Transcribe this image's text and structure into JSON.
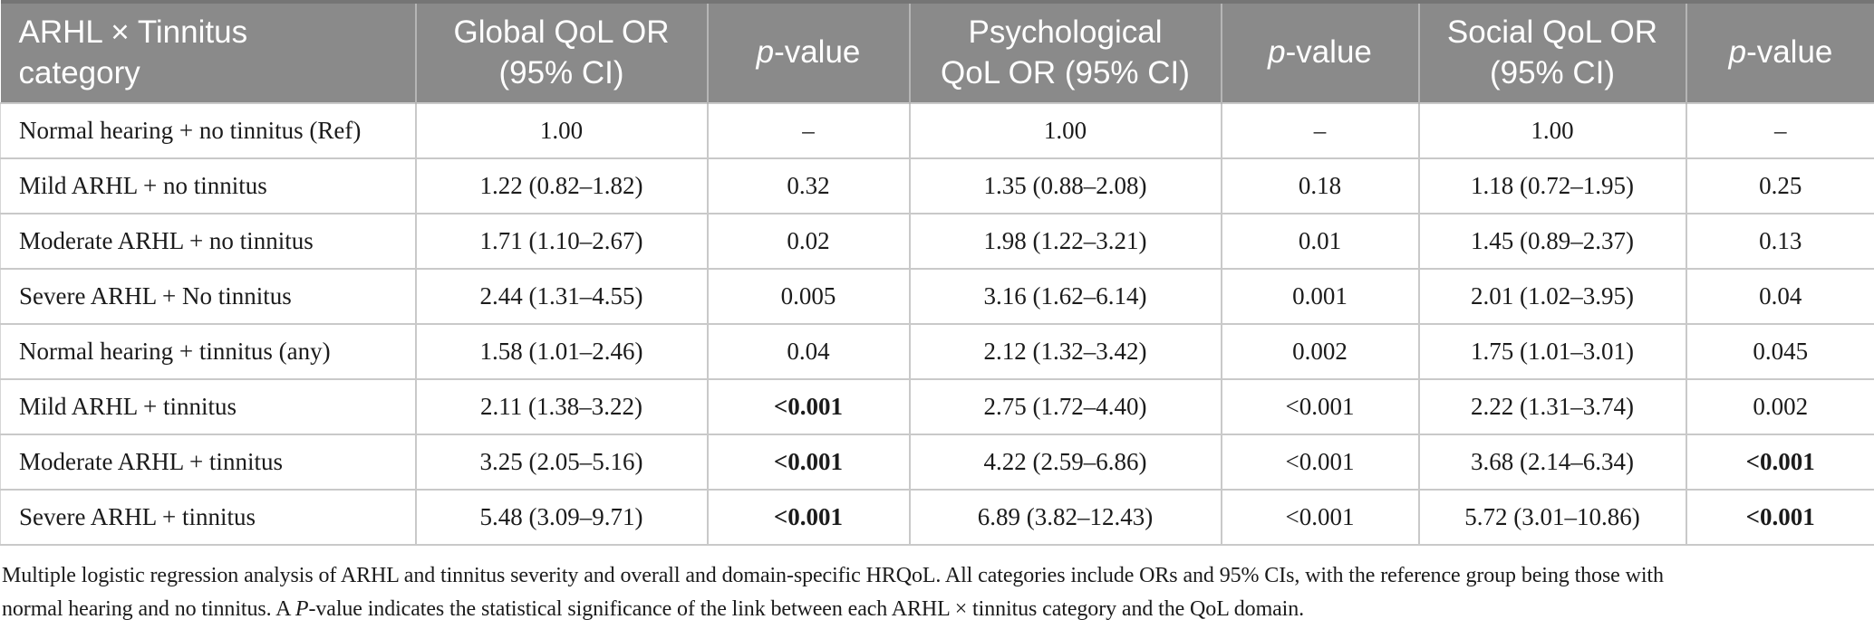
{
  "colors": {
    "header_bg": "#8a8a8a",
    "header_text": "#ffffff",
    "header_top_border": "#757575",
    "grid_line": "#c9c9c9",
    "body_text": "#1b1b1b"
  },
  "table": {
    "header": {
      "category": "ARHL × Tinnitus\ncategory",
      "global": "Global QoL OR\n(95% CI)",
      "psychological": "Psychological\nQoL OR (95% CI)",
      "social": "Social QoL OR\n(95% CI)",
      "p_italic": "p",
      "p_rest": "-value"
    },
    "rows": [
      {
        "cells": [
          "Normal hearing + no tinnitus (Ref)",
          "1.00",
          "–",
          "1.00",
          "–",
          "1.00",
          "–"
        ],
        "bold": [
          false,
          false,
          false,
          false,
          false,
          false,
          false
        ]
      },
      {
        "cells": [
          "Mild ARHL + no tinnitus",
          "1.22 (0.82–1.82)",
          "0.32",
          "1.35 (0.88–2.08)",
          "0.18",
          "1.18 (0.72–1.95)",
          "0.25"
        ],
        "bold": [
          false,
          false,
          false,
          false,
          false,
          false,
          false
        ]
      },
      {
        "cells": [
          "Moderate ARHL + no tinnitus",
          "1.71 (1.10–2.67)",
          "0.02",
          "1.98 (1.22–3.21)",
          "0.01",
          "1.45 (0.89–2.37)",
          "0.13"
        ],
        "bold": [
          false,
          false,
          false,
          false,
          false,
          false,
          false
        ]
      },
      {
        "cells": [
          "Severe ARHL + No tinnitus",
          "2.44 (1.31–4.55)",
          "0.005",
          "3.16 (1.62–6.14)",
          "0.001",
          "2.01 (1.02–3.95)",
          "0.04"
        ],
        "bold": [
          false,
          false,
          false,
          false,
          false,
          false,
          false
        ]
      },
      {
        "cells": [
          "Normal hearing + tinnitus (any)",
          "1.58 (1.01–2.46)",
          "0.04",
          "2.12 (1.32–3.42)",
          "0.002",
          "1.75 (1.01–3.01)",
          "0.045"
        ],
        "bold": [
          false,
          false,
          false,
          false,
          false,
          false,
          false
        ]
      },
      {
        "cells": [
          "Mild ARHL + tinnitus",
          "2.11 (1.38–3.22)",
          "<0.001",
          "2.75 (1.72–4.40)",
          "<0.001",
          "2.22 (1.31–3.74)",
          "0.002"
        ],
        "bold": [
          false,
          false,
          true,
          false,
          false,
          false,
          false
        ]
      },
      {
        "cells": [
          "Moderate ARHL + tinnitus",
          "3.25 (2.05–5.16)",
          "<0.001",
          "4.22 (2.59–6.86)",
          "<0.001",
          "3.68 (2.14–6.34)",
          "<0.001"
        ],
        "bold": [
          false,
          false,
          true,
          false,
          false,
          false,
          true
        ]
      },
      {
        "cells": [
          "Severe ARHL + tinnitus",
          "5.48 (3.09–9.71)",
          "<0.001",
          "6.89 (3.82–12.43)",
          "<0.001",
          "5.72 (3.01–10.86)",
          "<0.001"
        ],
        "bold": [
          false,
          false,
          true,
          false,
          false,
          false,
          true
        ]
      }
    ]
  },
  "footnote": {
    "line1": "Multiple logistic regression analysis of ARHL and tinnitus severity and overall and domain-specific HRQoL. All categories include ORs and 95% CIs, with the reference group being those with",
    "line2_pre": "normal hearing and no tinnitus. A ",
    "line2_italic": "P",
    "line2_post": "-value indicates the statistical significance of the link between each ARHL × tinnitus category and the QoL domain."
  }
}
